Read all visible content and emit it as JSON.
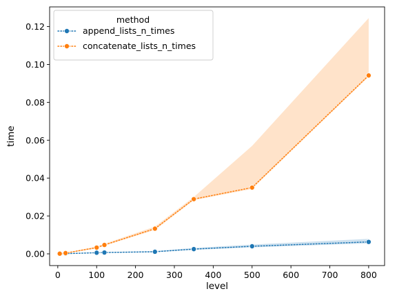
{
  "chart_data": {
    "type": "line",
    "xlabel": "level",
    "ylabel": "time",
    "xlim": [
      -21,
      841
    ],
    "ylim": [
      -0.0062,
      0.1304
    ],
    "xticks": [
      0,
      100,
      200,
      300,
      400,
      500,
      600,
      700,
      800
    ],
    "xtick_labels": [
      "0",
      "100",
      "200",
      "300",
      "400",
      "500",
      "600",
      "700",
      "800"
    ],
    "yticks": [
      0.0,
      0.02,
      0.04,
      0.06,
      0.08,
      0.1,
      0.12
    ],
    "ytick_labels": [
      "0.00",
      "0.02",
      "0.04",
      "0.06",
      "0.08",
      "0.10",
      "0.12"
    ],
    "grid": false,
    "legend": {
      "title": "method",
      "placement": "top-left"
    },
    "series": [
      {
        "name": "append_lists_n_times",
        "color": "#1f77b4",
        "line_style": "dotted",
        "marker": "circle",
        "x": [
          5,
          20,
          100,
          120,
          250,
          350,
          500,
          800
        ],
        "y": [
          5e-05,
          0.0001,
          0.0006,
          0.0007,
          0.0011,
          0.0025,
          0.004,
          0.0063
        ],
        "ci_low": [
          4e-05,
          8e-05,
          0.0005,
          0.0006,
          0.0009,
          0.0021,
          0.0034,
          0.0055
        ],
        "ci_high": [
          6e-05,
          0.00012,
          0.0008,
          0.0009,
          0.0015,
          0.0031,
          0.0049,
          0.0079
        ]
      },
      {
        "name": "concatenate_lists_n_times",
        "color": "#ff7f0e",
        "line_style": "dotted",
        "marker": "circle",
        "x": [
          5,
          20,
          100,
          120,
          250,
          350,
          500,
          800
        ],
        "y": [
          0.0001,
          0.0004,
          0.0033,
          0.0047,
          0.0133,
          0.0289,
          0.035,
          0.0942
        ],
        "ci_low": [
          8e-05,
          0.0003,
          0.0028,
          0.0043,
          0.0126,
          0.0283,
          0.0343,
          0.0935
        ],
        "ci_high": [
          0.00013,
          0.0005,
          0.0039,
          0.0053,
          0.0144,
          0.03,
          0.057,
          0.1245
        ]
      }
    ]
  }
}
